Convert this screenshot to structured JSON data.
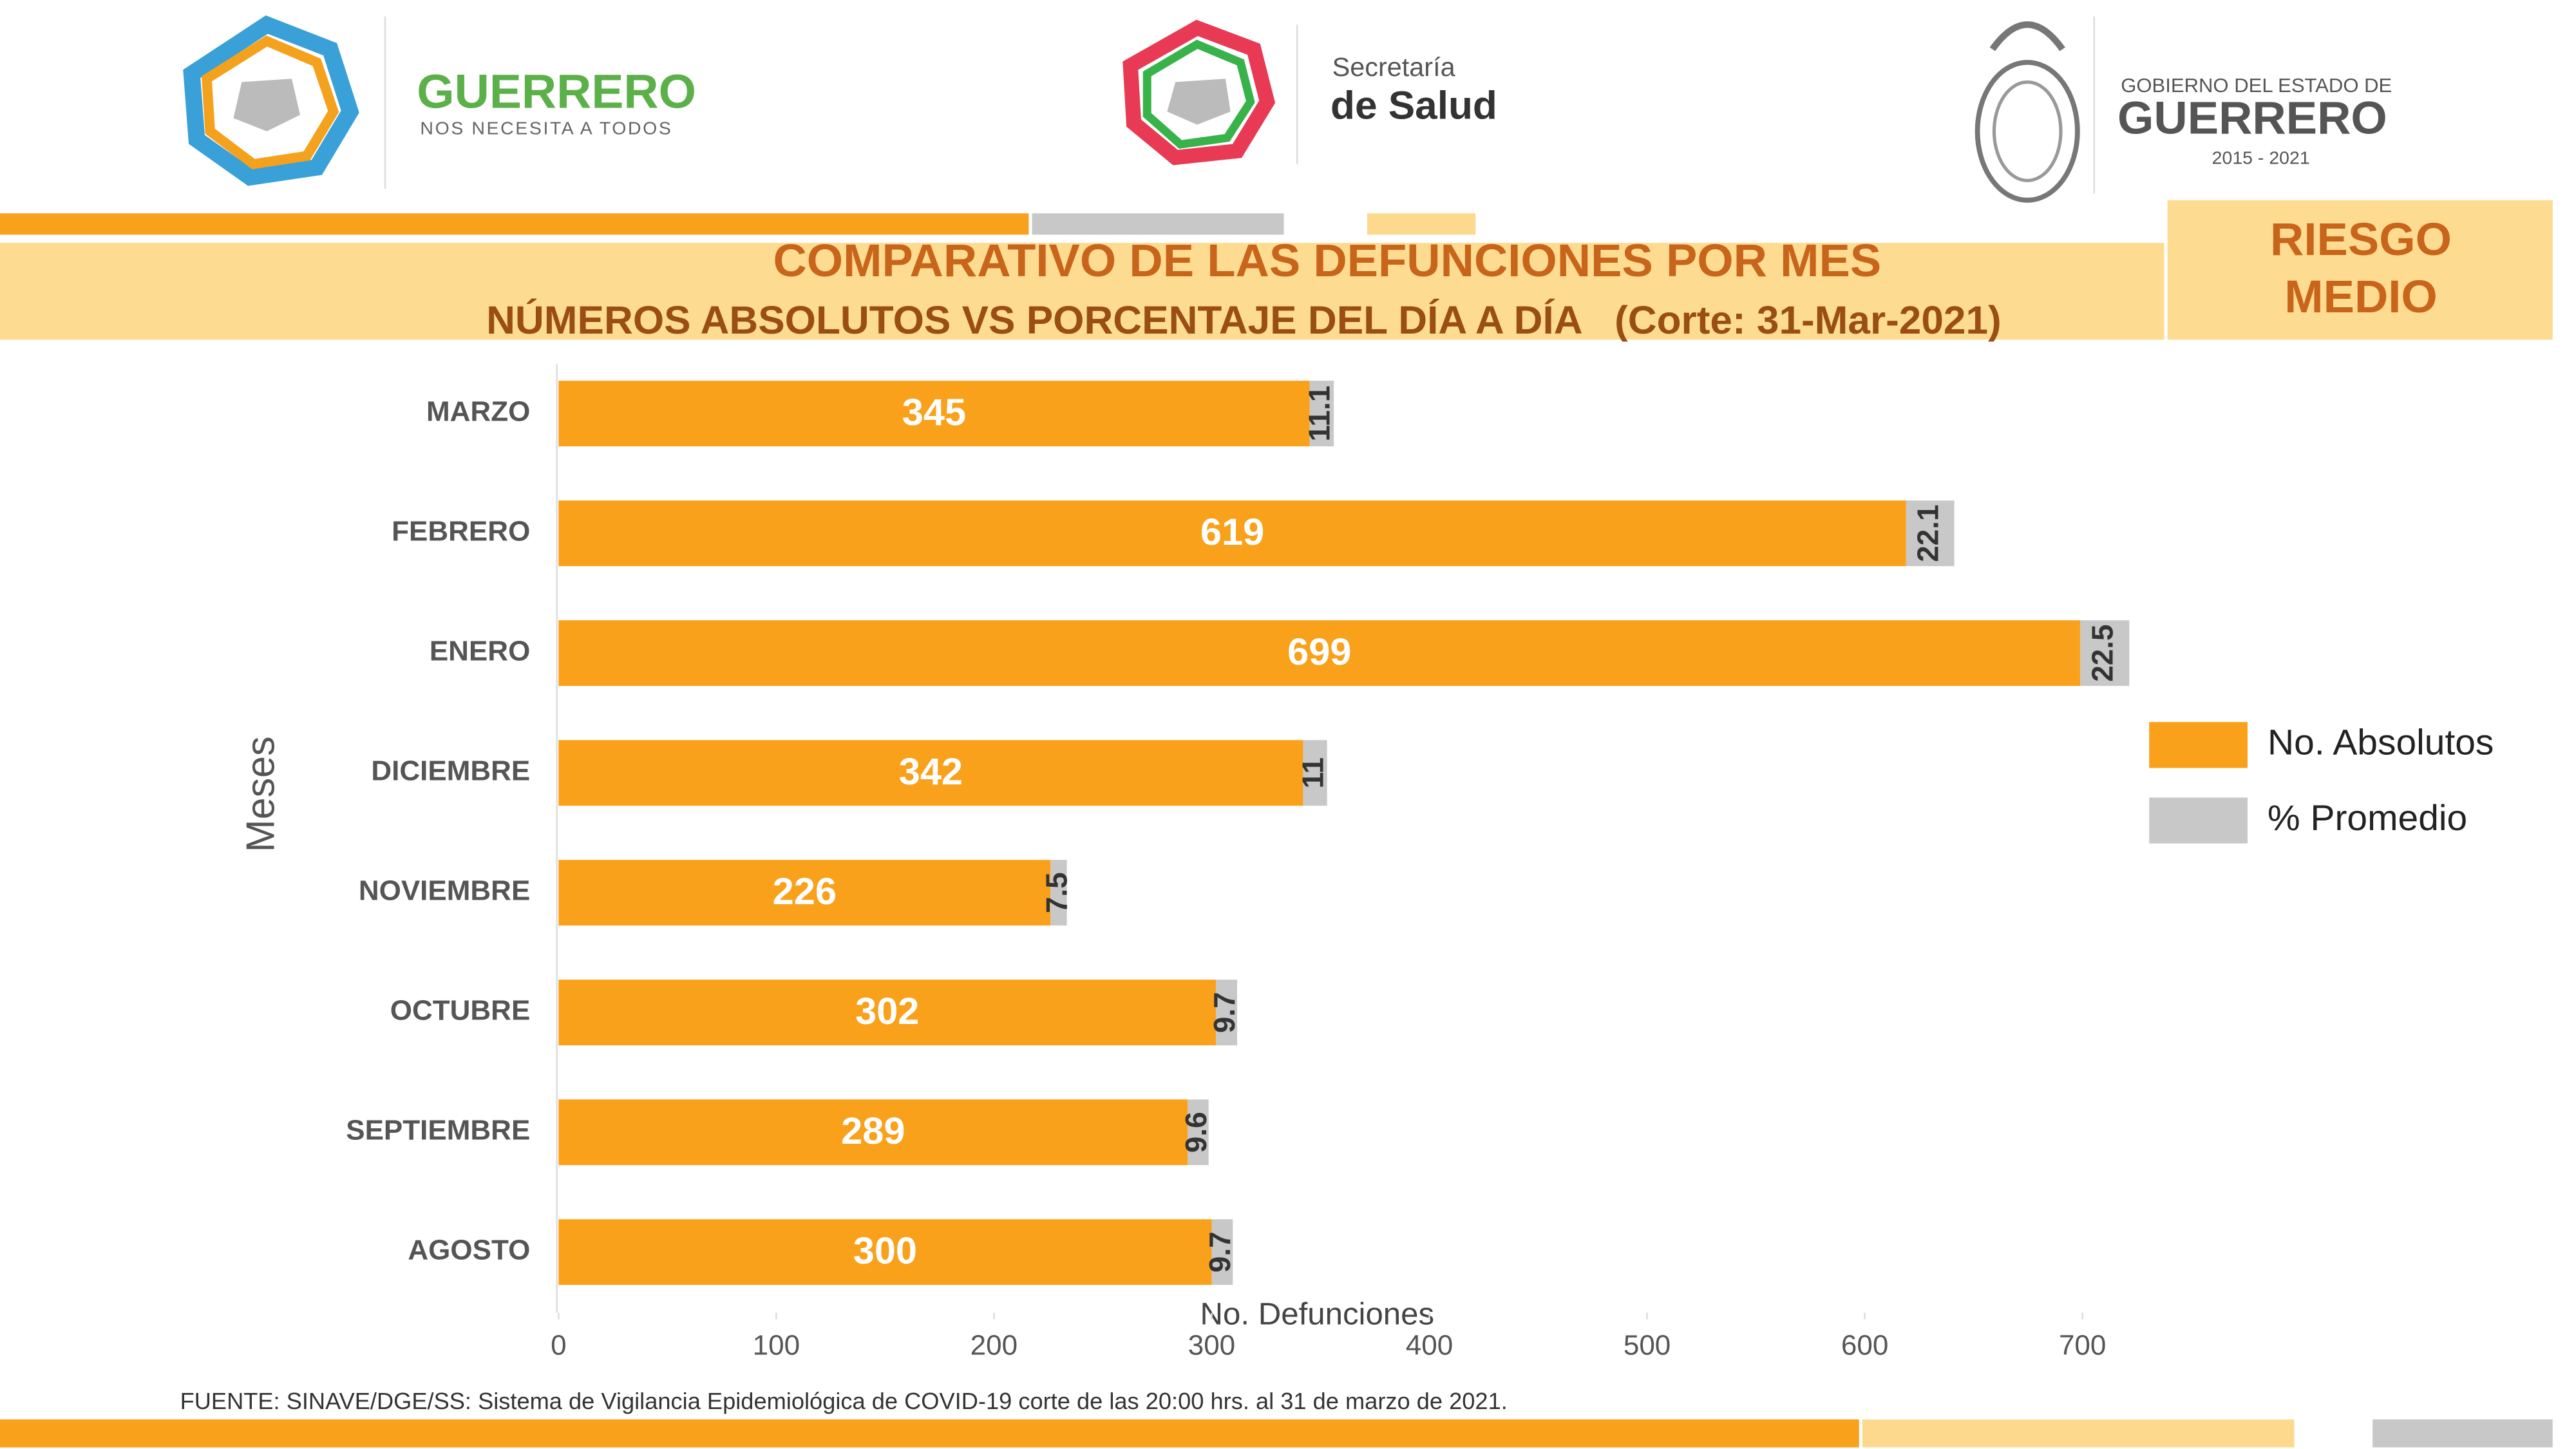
{
  "header": {
    "logo_left_title": "GUERRERO",
    "logo_left_subtitle": "NOS NECESITA A TODOS",
    "logo_mid_line1": "Secretaría",
    "logo_mid_line2": "de Salud",
    "logo_right_line1": "GOBIERNO DEL ESTADO DE",
    "logo_right_line2": "GUERRERO",
    "logo_right_line3": "2015 - 2021"
  },
  "badge": [
    "RIESGO",
    "MEDIO"
  ],
  "source": "FUENTE: SINAVE/DGE/SS: Sistema de Vigilancia Epidemiológica de COVID-19 corte de las 20:00 hrs. al 31 de  marzo de 2021.",
  "chart_data": {
    "type": "bar",
    "orientation": "horizontal",
    "stacked": true,
    "title": "COMPARATIVO DE LAS DEFUNCIONES POR MES",
    "subtitle": "NÚMEROS ABSOLUTOS VS PORCENTAJE DEL DÍA A DÍA   (Corte: 31-Mar-2021)",
    "x_label": "No. Defunciones",
    "y_label": "Meses",
    "categories": [
      "MARZO",
      "FEBRERO",
      "ENERO",
      "DICIEMBRE",
      "NOVIEMBRE",
      "OCTUBRE",
      "SEPTIEMBRE",
      "AGOSTO"
    ],
    "series": [
      {
        "name": "No. Absolutos",
        "color": "#F9A11B",
        "values": [
          345,
          619,
          699,
          342,
          226,
          302,
          289,
          300
        ]
      },
      {
        "name": "% Promedio",
        "color": "#C8C8C8",
        "values": [
          11.1,
          22.1,
          22.5,
          11,
          7.5,
          9.7,
          9.6,
          9.7
        ]
      }
    ],
    "xlim": [
      0,
      700
    ],
    "xticks": [
      0,
      100,
      200,
      300,
      400,
      500,
      600,
      700
    ],
    "legend": "right"
  }
}
